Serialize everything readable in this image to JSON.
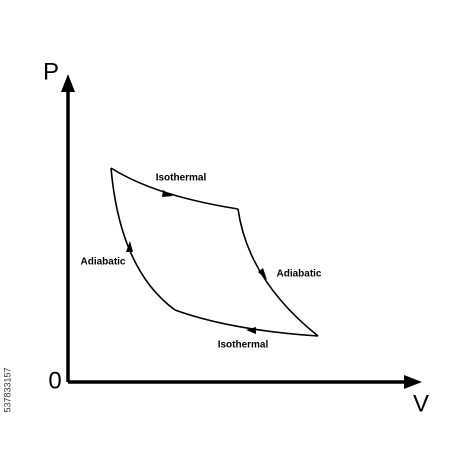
{
  "axes": {
    "y_label": "P",
    "x_label": "V",
    "origin": "0"
  },
  "processes": [
    {
      "label": "Isothermal"
    },
    {
      "label": "Adiabatic"
    },
    {
      "label": "Isothermal"
    },
    {
      "label": "Adiabatic"
    }
  ],
  "watermark": "537833157"
}
